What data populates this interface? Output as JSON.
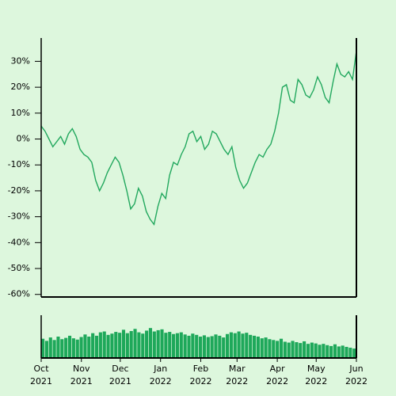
{
  "chart_data": [
    {
      "type": "line",
      "color": "#22a85e",
      "values": [
        5,
        3,
        0,
        -3,
        -1,
        1,
        -2,
        2,
        4,
        1,
        -4,
        -6,
        -7,
        -9,
        -16,
        -20,
        -17,
        -13,
        -10,
        -7,
        -9,
        -14,
        -20,
        -27,
        -25,
        -19,
        -22,
        -28,
        -31,
        -33,
        -26,
        -21,
        -23,
        -14,
        -9,
        -10,
        -6,
        -3,
        2,
        3,
        -1,
        1,
        -4,
        -2,
        3,
        2,
        -1,
        -4,
        -6,
        -3,
        -11,
        -16,
        -19,
        -17,
        -13,
        -9,
        -6,
        -7,
        -4,
        -2,
        3,
        10,
        20,
        21,
        15,
        14,
        23,
        21,
        17,
        16,
        19,
        24,
        21,
        16,
        14,
        22,
        29,
        25,
        24,
        26,
        23,
        34
      ],
      "xlim": [
        0,
        81
      ],
      "ylim": [
        -61,
        39
      ],
      "yticks": [
        {
          "value": 30,
          "label": "30%"
        },
        {
          "value": 20,
          "label": "20%"
        },
        {
          "value": 10,
          "label": "10%"
        },
        {
          "value": 0,
          "label": "0%"
        },
        {
          "value": -10,
          "label": "-10%"
        },
        {
          "value": -20,
          "label": "-20%"
        },
        {
          "value": -30,
          "label": "-30%"
        },
        {
          "value": -40,
          "label": "-40%"
        },
        {
          "value": -50,
          "label": "-50%"
        },
        {
          "value": -60,
          "label": "-60%"
        }
      ]
    },
    {
      "type": "bar",
      "color": "#1ea85a",
      "values": [
        45,
        40,
        48,
        42,
        50,
        44,
        47,
        52,
        46,
        43,
        49,
        55,
        50,
        58,
        52,
        60,
        62,
        54,
        57,
        61,
        59,
        66,
        58,
        63,
        68,
        60,
        57,
        64,
        70,
        62,
        65,
        67,
        59,
        61,
        56,
        58,
        60,
        55,
        52,
        57,
        54,
        50,
        53,
        49,
        51,
        55,
        52,
        48,
        56,
        60,
        58,
        62,
        57,
        59,
        54,
        52,
        50,
        46,
        48,
        44,
        42,
        40,
        45,
        38,
        36,
        40,
        37,
        35,
        39,
        33,
        36,
        34,
        31,
        33,
        30,
        28,
        32,
        27,
        29,
        26,
        24,
        22
      ],
      "xlim": [
        0,
        81
      ],
      "ylim": [
        0,
        100
      ],
      "xticks": [
        {
          "value": 0,
          "label": "Oct 2021"
        },
        {
          "value": 10.33,
          "label": "Nov 2021"
        },
        {
          "value": 20.33,
          "label": "Dec 2021"
        },
        {
          "value": 30.67,
          "label": "Jan 2022"
        },
        {
          "value": 41,
          "label": "Feb 2022"
        },
        {
          "value": 50.33,
          "label": "Mar 2022"
        },
        {
          "value": 60.67,
          "label": "Apr 2022"
        },
        {
          "value": 70.67,
          "label": "May 2022"
        },
        {
          "value": 81,
          "label": "Jun 2022"
        }
      ]
    }
  ]
}
